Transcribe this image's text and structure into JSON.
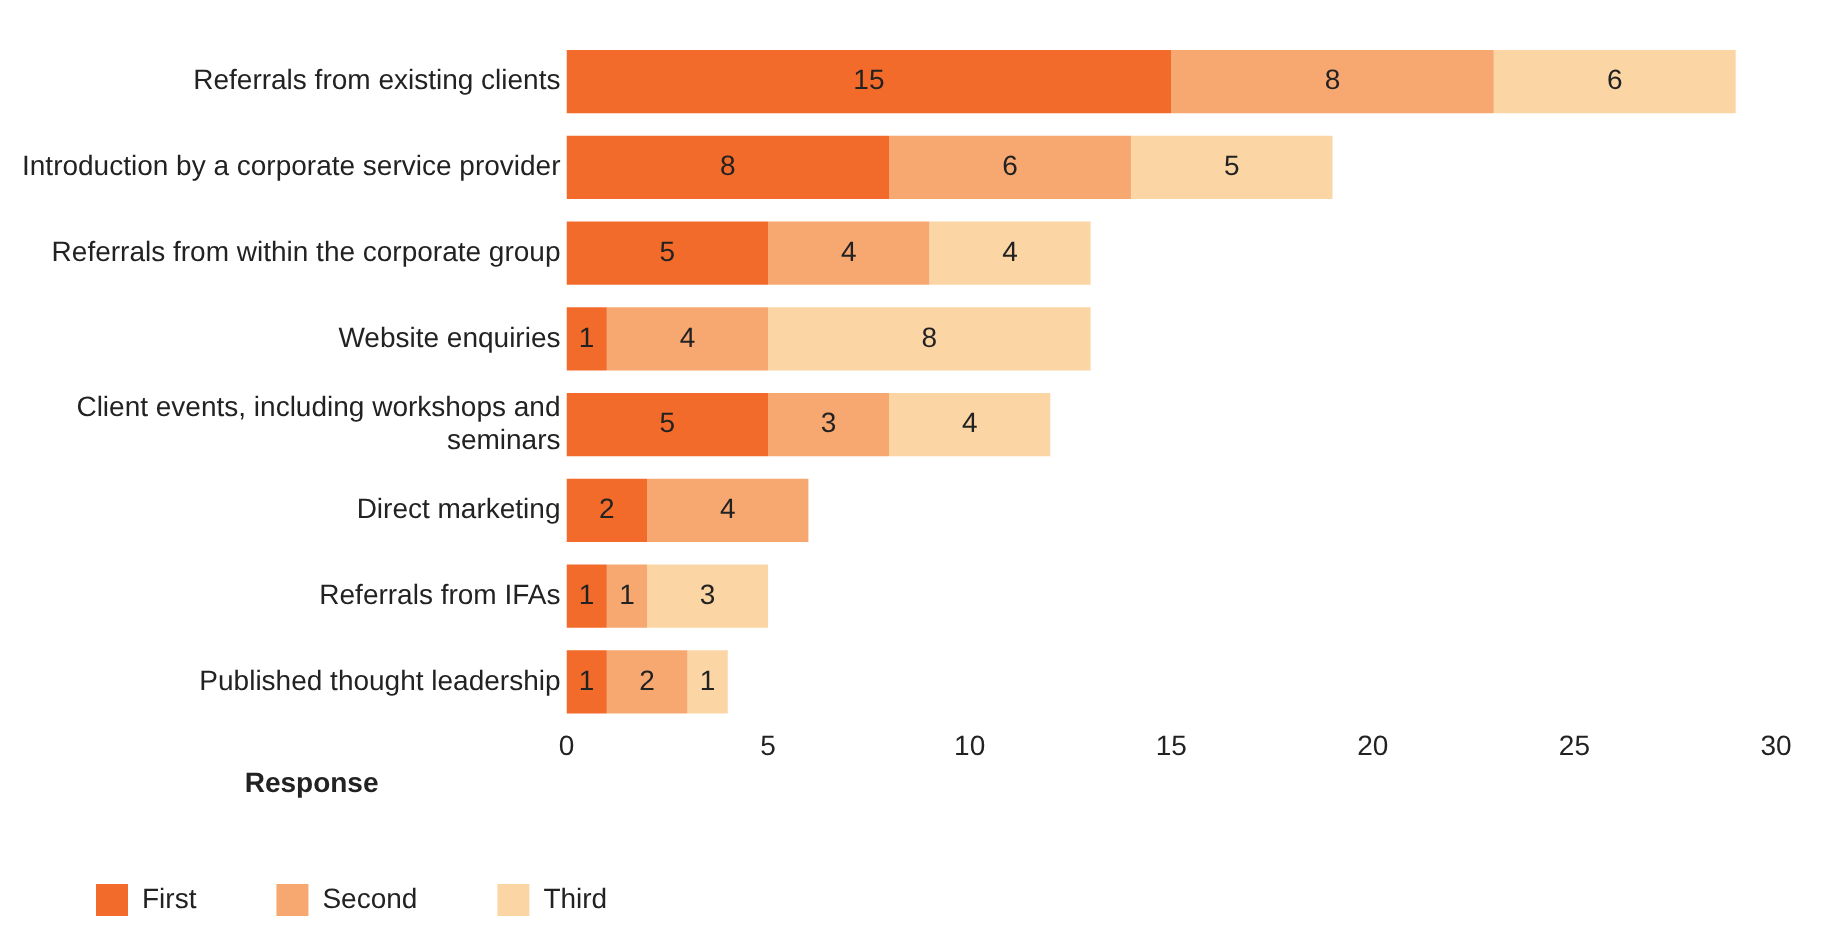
{
  "chart_data": {
    "type": "bar",
    "orientation": "horizontal",
    "stacked": true,
    "legend_title": "Response",
    "legend": "bottom left",
    "grid": false,
    "data_labels": true,
    "categories": [
      "Referrals from existing clients",
      "Introduction by a corporate service provider",
      "Referrals from within the corporate group",
      "Website enquiries",
      "Client events, including workshops and seminars",
      "Direct marketing",
      "Referrals from IFAs",
      "Published thought leadership"
    ],
    "series": [
      {
        "name": "First",
        "color": "#f26b2a",
        "values": [
          15,
          8,
          5,
          1,
          5,
          2,
          1,
          1
        ]
      },
      {
        "name": "Second",
        "color": "#f7a870",
        "values": [
          8,
          6,
          4,
          4,
          3,
          4,
          1,
          2
        ]
      },
      {
        "name": "Third",
        "color": "#fcd5a5",
        "values": [
          6,
          5,
          4,
          8,
          4,
          null,
          3,
          1
        ]
      }
    ],
    "xlim": [
      0,
      30
    ],
    "xticks": [
      0,
      5,
      10,
      15,
      20,
      25,
      30
    ]
  }
}
